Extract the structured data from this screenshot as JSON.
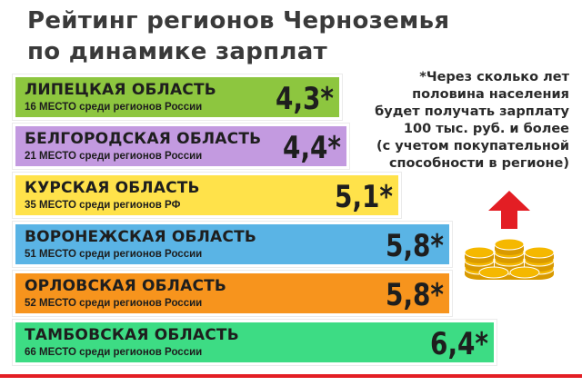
{
  "title_lines": [
    "Рейтинг регионов Черноземья",
    "по динамике зарплат"
  ],
  "note": "*Через сколько лет\nполовина населения\nбудет получать зарплату\n100 тыс. руб. и более\n(с учетом покупательной\nспособности в регионе)",
  "colors": {
    "bar_colors": [
      "#8dc63f",
      "#c39ae0",
      "#ffe24a",
      "#5ab4e5",
      "#f7941d",
      "#3ddc84"
    ],
    "coin": "#f5b800",
    "arrow": "#e31e24",
    "rule": "#e31e24"
  },
  "icons": [
    "coin-stack-icon",
    "arrow-up-icon"
  ],
  "chart_data": {
    "type": "bar",
    "orientation": "horizontal",
    "categories": [
      "ЛИПЕЦКАЯ ОБЛАСТЬ",
      "БЕЛГОРОДСКАЯ ОБЛАСТЬ",
      "КУРСКАЯ ОБЛАСТЬ",
      "ВОРОНЕЖСКАЯ ОБЛАСТЬ",
      "ОРЛОВСКАЯ ОБЛАСТЬ",
      "ТАМБОВСКАЯ ОБЛАСТЬ"
    ],
    "places": [
      "16 МЕСТО среди регионов России",
      "21 МЕСТО среди регионов России",
      "35 МЕСТО среди регионов РФ",
      "51 МЕСТО среди регионов России",
      "52 МЕСТО среди регионов России",
      "66 МЕСТО среди регионов России"
    ],
    "values": [
      4.3,
      4.4,
      5.1,
      5.8,
      5.8,
      6.4
    ],
    "value_labels": [
      "4,3*",
      "4,4*",
      "5,1*",
      "5,8*",
      "5,8*",
      "6,4*"
    ],
    "title": "Рейтинг регионов Черноземья по динамике зарплат",
    "xlabel": "",
    "ylabel": "",
    "grid": false,
    "legend": "none"
  }
}
